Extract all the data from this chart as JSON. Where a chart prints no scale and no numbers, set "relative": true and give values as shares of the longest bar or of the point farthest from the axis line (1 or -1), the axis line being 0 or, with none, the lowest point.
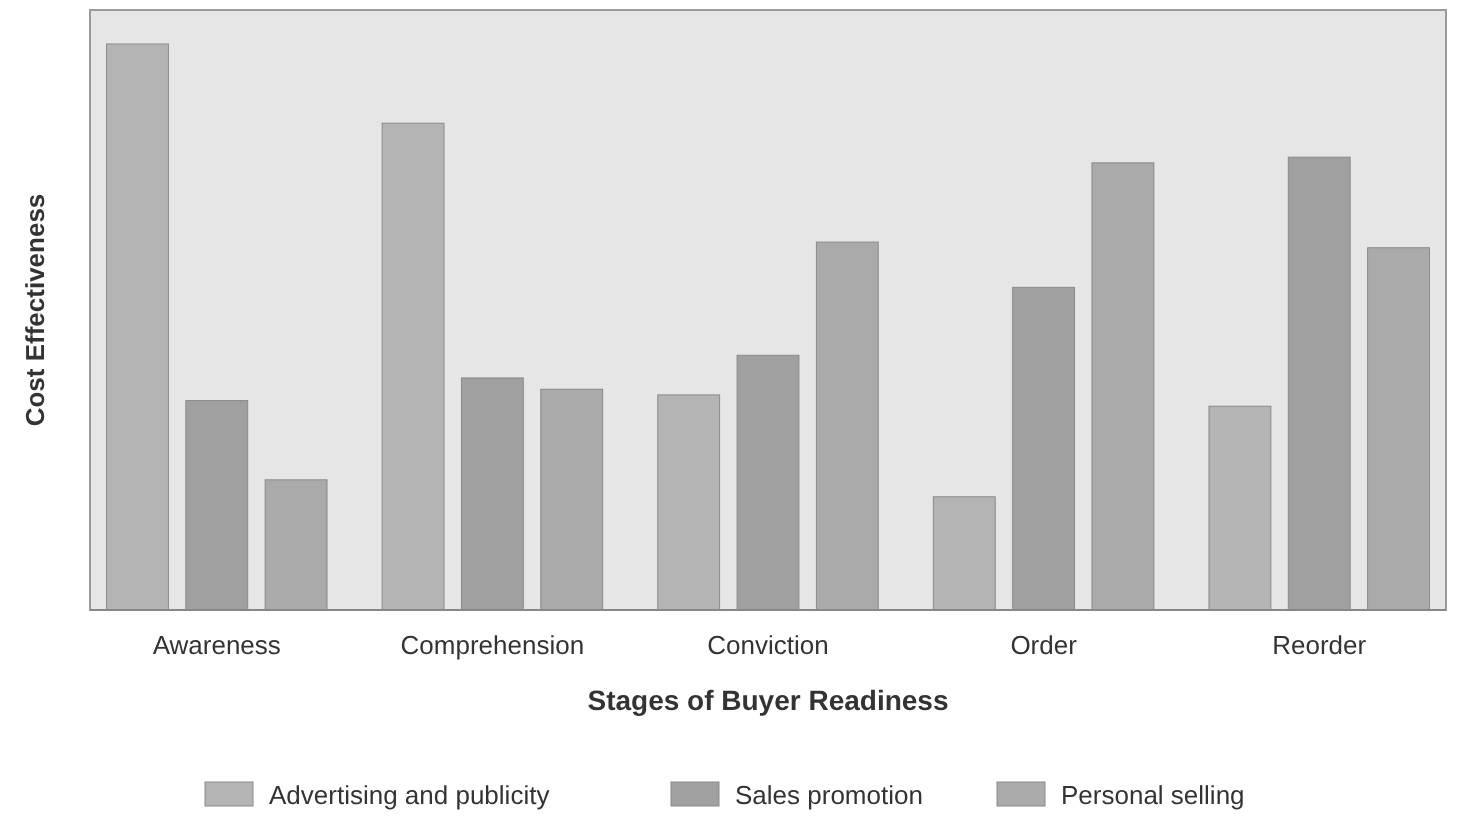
{
  "chart_data": {
    "type": "bar",
    "relative": true,
    "xlabel": "Stages of Buyer Readiness",
    "ylabel": "Cost Effectiveness",
    "categories": [
      "Awareness",
      "Comprehension",
      "Conviction",
      "Order",
      "Reorder"
    ],
    "series": [
      {
        "name": "Advertising and publicity",
        "color": "#b4b4b4",
        "values": [
          1,
          0.86,
          0.38,
          0.2,
          0.36
        ]
      },
      {
        "name": "Sales promotion",
        "color": "#a0a0a0",
        "values": [
          0.37,
          0.41,
          0.45,
          0.57,
          0.8
        ]
      },
      {
        "name": "Personal selling",
        "color": "#aaaaaa",
        "values": [
          0.23,
          0.39,
          0.65,
          0.79,
          0.64
        ]
      }
    ],
    "legend": "bottom"
  }
}
